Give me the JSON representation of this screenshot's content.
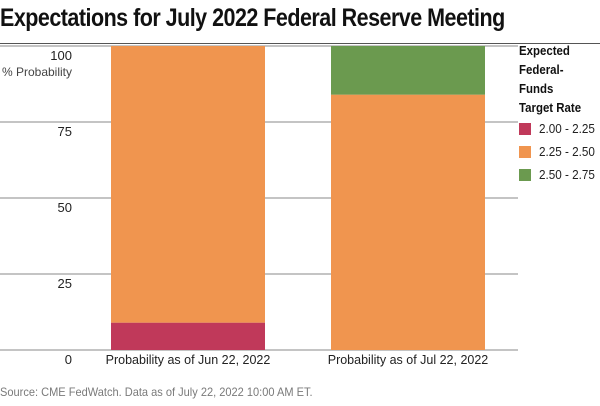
{
  "chart_data": {
    "type": "bar",
    "stacked": true,
    "title": "Expectations for July 2022 Federal Reserve Meeting",
    "ylabel": "% Probability",
    "ylim": [
      0,
      100
    ],
    "yticks": [
      0,
      25,
      50,
      75,
      100
    ],
    "grid": true,
    "categories": [
      "Probability as of Jun 22, 2022",
      "Probability as of Jul 22, 2022"
    ],
    "series": [
      {
        "name": "2.00 - 2.25",
        "color": "#c0395a",
        "values": [
          9,
          0
        ]
      },
      {
        "name": "2.25 - 2.50",
        "color": "#f0954f",
        "values": [
          91,
          84
        ]
      },
      {
        "name": "2.50 - 2.75",
        "color": "#6b9a4f",
        "values": [
          0,
          16
        ]
      }
    ],
    "legend_title": "Expected\nFederal-Funds\nTarget Rate",
    "legend_position": "right"
  },
  "source_note": "Source: CME FedWatch. Data as of July 22, 2022 10:00 AM ET."
}
